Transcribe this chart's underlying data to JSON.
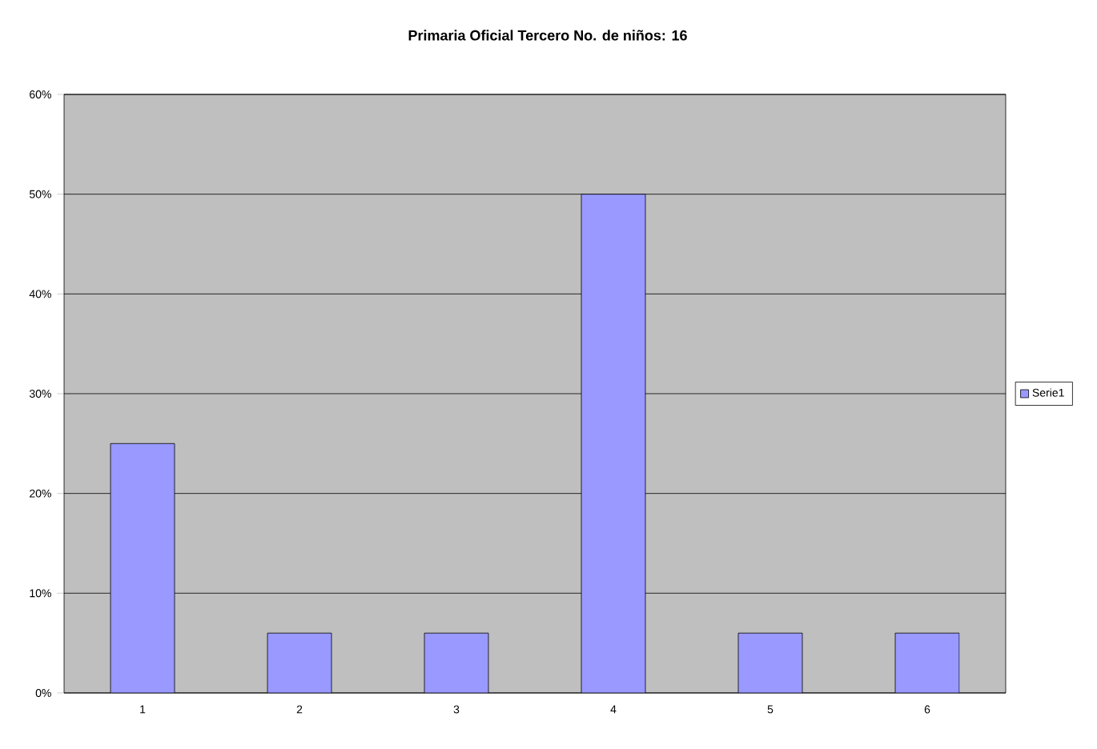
{
  "chart_data": {
    "type": "bar",
    "title": "Primaria Oficial Tercero No. de niños: 16",
    "categories": [
      "1",
      "2",
      "3",
      "4",
      "5",
      "6"
    ],
    "series": [
      {
        "name": "Serie1",
        "color": "#9999ff",
        "values": [
          25,
          6,
          6,
          50,
          6,
          6
        ]
      }
    ],
    "ylim": [
      0,
      60
    ],
    "yticks": [
      {
        "value": 0,
        "label": "0%"
      },
      {
        "value": 10,
        "label": "10%"
      },
      {
        "value": 20,
        "label": "20%"
      },
      {
        "value": 30,
        "label": "30%"
      },
      {
        "value": 40,
        "label": "40%"
      },
      {
        "value": 50,
        "label": "50%"
      },
      {
        "value": 60,
        "label": "60%"
      }
    ],
    "grid": "y",
    "legend": "right"
  }
}
